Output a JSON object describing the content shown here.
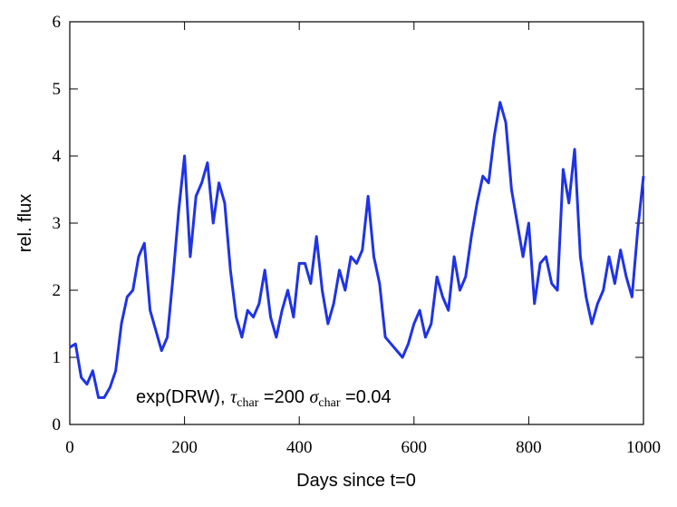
{
  "chart_data": {
    "type": "line",
    "xlabel": "Days since t=0",
    "ylabel": "rel. flux",
    "annotation": [
      {
        "text": "exp(DRW), "
      },
      {
        "text": "τ",
        "italic": true
      },
      {
        "text": "char",
        "sub": true
      },
      {
        "text": " =200 "
      },
      {
        "text": "σ",
        "italic": true
      },
      {
        "text": "char",
        "sub": true
      },
      {
        "text": " =0.04"
      }
    ],
    "xlim": [
      0,
      1000
    ],
    "ylim": [
      0,
      6
    ],
    "xticks": [
      0,
      200,
      400,
      600,
      800,
      1000
    ],
    "yticks": [
      0,
      1,
      2,
      3,
      4,
      5,
      6
    ],
    "x": [
      0,
      10,
      20,
      30,
      40,
      50,
      60,
      70,
      80,
      90,
      100,
      110,
      120,
      130,
      140,
      150,
      160,
      170,
      180,
      190,
      200,
      210,
      220,
      230,
      240,
      250,
      260,
      270,
      280,
      290,
      300,
      310,
      320,
      330,
      340,
      350,
      360,
      370,
      380,
      390,
      400,
      410,
      420,
      430,
      440,
      450,
      460,
      470,
      480,
      490,
      500,
      510,
      520,
      530,
      540,
      550,
      560,
      570,
      580,
      590,
      600,
      610,
      620,
      630,
      640,
      650,
      660,
      670,
      680,
      690,
      700,
      710,
      720,
      730,
      740,
      750,
      760,
      770,
      780,
      790,
      800,
      810,
      820,
      830,
      840,
      850,
      860,
      870,
      880,
      890,
      900,
      910,
      920,
      930,
      940,
      950,
      960,
      970,
      980,
      990,
      1000
    ],
    "series": [
      {
        "color": "#1f33e6",
        "values": [
          1.15,
          1.2,
          0.7,
          0.6,
          0.8,
          0.4,
          0.4,
          0.55,
          0.8,
          1.5,
          1.9,
          2.0,
          2.5,
          2.7,
          1.7,
          1.4,
          1.1,
          1.3,
          2.2,
          3.2,
          4.0,
          2.5,
          3.4,
          3.6,
          3.9,
          3.0,
          3.6,
          3.3,
          2.3,
          1.6,
          1.3,
          1.7,
          1.6,
          1.8,
          2.3,
          1.6,
          1.3,
          1.7,
          2.0,
          1.6,
          2.4,
          2.4,
          2.1,
          2.8,
          2.0,
          1.5,
          1.8,
          2.3,
          2.0,
          2.5,
          2.4,
          2.6,
          3.4,
          2.5,
          2.1,
          1.3,
          1.2,
          1.1,
          1.0,
          1.2,
          1.5,
          1.7,
          1.3,
          1.5,
          2.2,
          1.9,
          1.7,
          2.5,
          2.0,
          2.2,
          2.8,
          3.3,
          3.7,
          3.6,
          4.3,
          4.8,
          4.5,
          3.5,
          3.0,
          2.5,
          3.0,
          1.8,
          2.4,
          2.5,
          2.1,
          2.0,
          3.8,
          3.3,
          4.1,
          2.5,
          1.9,
          1.5,
          1.8,
          2.0,
          2.5,
          2.1,
          2.6,
          2.2,
          1.9,
          2.9,
          3.7
        ]
      }
    ]
  }
}
